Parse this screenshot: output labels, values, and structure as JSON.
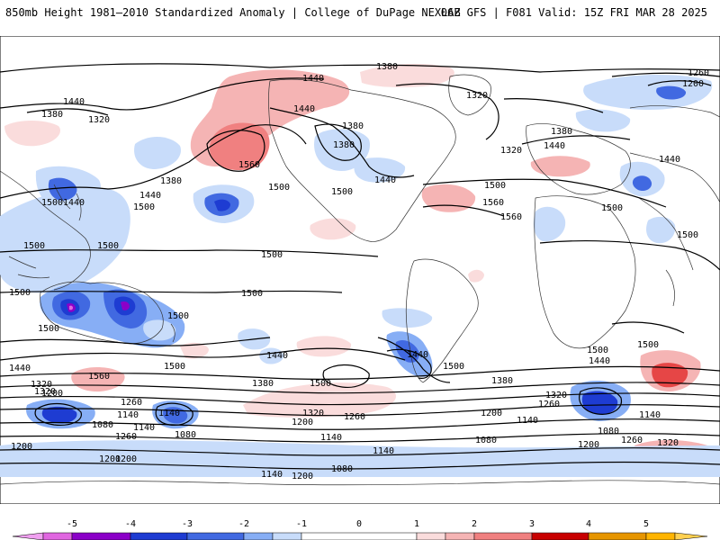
{
  "header": {
    "left_title": "850mb Height 1981–2010 Standardized Anomaly | College of DuPage NEXLAB",
    "right_title": "06Z GFS | F081 Valid: 15Z FRI MAR 28 2025"
  },
  "colors": {
    "neg_5": "#e066e0",
    "neg_4": "#8b00c8",
    "neg_3": "#1e3cd2",
    "neg_2": "#4169e1",
    "neg_1a": "#87aef5",
    "neg_1b": "#c8dcfa",
    "pos_1a": "#fadcdc",
    "pos_1b": "#f5b4b4",
    "pos_2": "#f08080",
    "pos_3": "#e64646",
    "pos_4": "#c80000",
    "pos_5": "#ffa500",
    "land": "#ffffff",
    "ocean": "#ffffff"
  },
  "colorbar": {
    "ticks": [
      "-5",
      "-4",
      "-3",
      "-2",
      "-1",
      "0",
      "1",
      "2",
      "3",
      "4",
      "5"
    ]
  },
  "contour_labels": [
    {
      "text": "1380"
    },
    {
      "text": "1440"
    },
    {
      "text": "1440"
    },
    {
      "text": "1380"
    },
    {
      "text": "1320"
    },
    {
      "text": "1320"
    },
    {
      "text": "1380"
    },
    {
      "text": "1440"
    },
    {
      "text": "1380"
    },
    {
      "text": "1560"
    },
    {
      "text": "1500"
    },
    {
      "text": "1440"
    },
    {
      "text": "1380"
    },
    {
      "text": "1500"
    },
    {
      "text": "1500"
    },
    {
      "text": "1440"
    },
    {
      "text": "1500"
    },
    {
      "text": "1560"
    },
    {
      "text": "1560"
    },
    {
      "text": "1320"
    },
    {
      "text": "1440"
    },
    {
      "text": "1380"
    },
    {
      "text": "1260"
    },
    {
      "text": "1200"
    },
    {
      "text": "1440"
    },
    {
      "text": "1500"
    },
    {
      "text": "1500"
    },
    {
      "text": "1500"
    },
    {
      "text": "1500"
    },
    {
      "text": "1500"
    },
    {
      "text": "1500"
    },
    {
      "text": "1500"
    },
    {
      "text": "1440"
    },
    {
      "text": "1500"
    },
    {
      "text": "1500"
    },
    {
      "text": "1500"
    },
    {
      "text": "1500"
    },
    {
      "text": "1500"
    },
    {
      "text": "1440"
    },
    {
      "text": "1560"
    },
    {
      "text": "1440"
    },
    {
      "text": "1320"
    },
    {
      "text": "1200"
    },
    {
      "text": "1260"
    },
    {
      "text": "1140"
    },
    {
      "text": "1080"
    },
    {
      "text": "1140"
    },
    {
      "text": "1080"
    },
    {
      "text": "1260"
    },
    {
      "text": "1200"
    },
    {
      "text": "1200"
    },
    {
      "text": "1440"
    },
    {
      "text": "1380"
    },
    {
      "text": "1500"
    },
    {
      "text": "1320"
    },
    {
      "text": "1200"
    },
    {
      "text": "1260"
    },
    {
      "text": "1140"
    },
    {
      "text": "1140"
    },
    {
      "text": "1380"
    },
    {
      "text": "1320"
    },
    {
      "text": "1260"
    },
    {
      "text": "1200"
    },
    {
      "text": "1140"
    },
    {
      "text": "1080"
    },
    {
      "text": "1080"
    },
    {
      "text": "1200"
    },
    {
      "text": "1260"
    },
    {
      "text": "1320"
    },
    {
      "text": "1140"
    },
    {
      "text": "1080"
    },
    {
      "text": "1140"
    },
    {
      "text": "1200"
    },
    {
      "text": "1140"
    },
    {
      "text": "1440"
    },
    {
      "text": "1500"
    },
    {
      "text": "1500"
    },
    {
      "text": "1320"
    },
    {
      "text": "1200"
    }
  ]
}
